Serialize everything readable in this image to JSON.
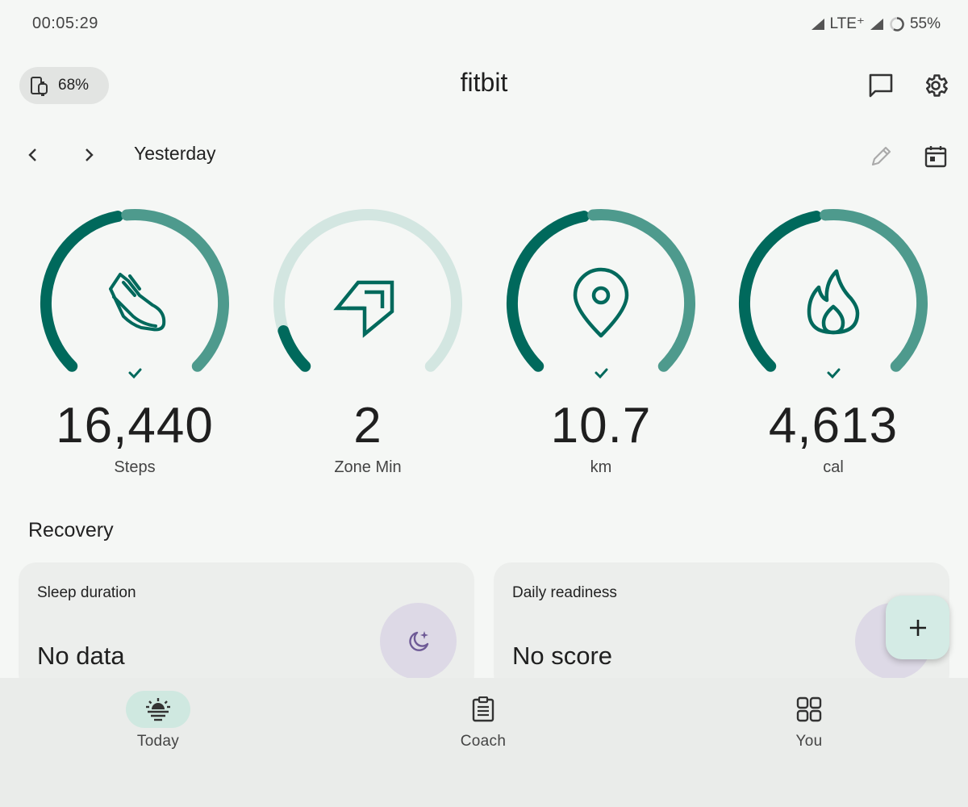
{
  "status_bar": {
    "time": "00:05:29",
    "network": "LTE⁺",
    "battery": "55%"
  },
  "header": {
    "device_battery": "68%",
    "app_title": "fitbit"
  },
  "date_nav": {
    "label": "Yesterday"
  },
  "stats": [
    {
      "value": "16,440",
      "label": "Steps",
      "icon": "shoe-icon",
      "progress": 1.0,
      "goal_met": true
    },
    {
      "value": "2",
      "label": "Zone Min",
      "icon": "zone-arrow-icon",
      "progress": 0.1,
      "goal_met": false
    },
    {
      "value": "10.7",
      "label": "km",
      "icon": "location-pin-icon",
      "progress": 1.0,
      "goal_met": true
    },
    {
      "value": "4,613",
      "label": "cal",
      "icon": "flame-icon",
      "progress": 1.0,
      "goal_met": true
    }
  ],
  "recovery": {
    "title": "Recovery",
    "cards": [
      {
        "title": "Sleep duration",
        "value": "No data",
        "icon": "moon-icon"
      },
      {
        "title": "Daily readiness",
        "value": "No score",
        "icon": "readiness-icon"
      }
    ]
  },
  "bottom_nav": {
    "items": [
      {
        "label": "Today",
        "icon": "sunrise-icon",
        "active": true
      },
      {
        "label": "Coach",
        "icon": "clipboard-icon",
        "active": false
      },
      {
        "label": "You",
        "icon": "grid-icon",
        "active": false
      }
    ]
  },
  "colors": {
    "ring_dark": "#00695c",
    "ring_mid": "#4e9a8d",
    "ring_light": "#d3e6e1",
    "accent_bg": "#cfe8e0",
    "badge_purple": "#ddd9e6"
  }
}
